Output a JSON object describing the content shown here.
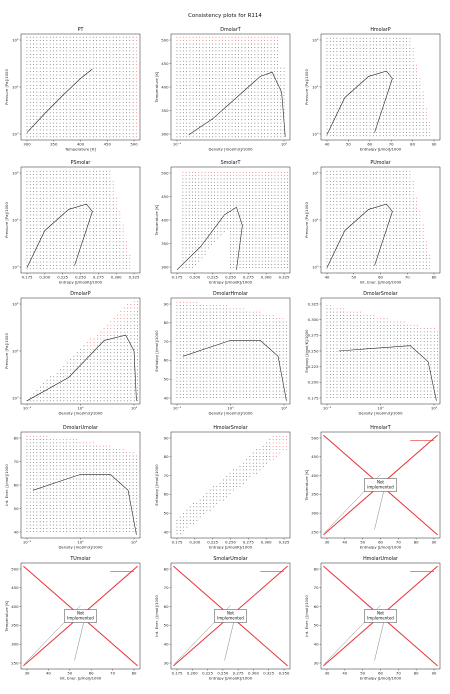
{
  "page": {
    "title": "Consistency plots for R114"
  },
  "colors": {
    "curve": "#222222",
    "dots": "#333333",
    "red": "#e8333a",
    "grid_stroke": "#222222",
    "box_fill": "#ffffff"
  },
  "chart_data": [
    {
      "title": "PT",
      "type": "scatter",
      "xlabel": "Temperature [K]",
      "ylabel": "Pressure [Pa]/1000",
      "xticks": [
        "300",
        "350",
        "400",
        "450",
        "500"
      ],
      "yticks": [
        "10⁰",
        "10¹",
        "10²"
      ],
      "placeholder": false
    },
    {
      "title": "DmolarT",
      "type": "scatter",
      "xlabel": "Density [mol/m3]/1000",
      "ylabel": "Temperature [K]",
      "xticks": [
        "10⁻¹",
        "10⁰"
      ],
      "yticks": [
        "300",
        "350",
        "400",
        "450",
        "500"
      ],
      "placeholder": false
    },
    {
      "title": "HmolarP",
      "type": "scatter",
      "xlabel": "Enthalpy [J/mol]/1000",
      "ylabel": "Pressure [Pa]/1000",
      "xticks": [
        "40",
        "50",
        "60",
        "70",
        "80",
        "90"
      ],
      "yticks": [
        "10⁰",
        "10¹",
        "10²"
      ],
      "placeholder": false
    },
    {
      "title": "PSmolar",
      "type": "scatter",
      "xlabel": "Entropy [J/mol/K]/1000",
      "ylabel": "Pressure [Pa]/1000",
      "xticks": [
        "0.175",
        "0.200",
        "0.225",
        "0.250",
        "0.275",
        "0.300",
        "0.325"
      ],
      "yticks": [
        "10⁰",
        "10¹",
        "10²"
      ],
      "placeholder": false
    },
    {
      "title": "SmolarT",
      "type": "scatter",
      "xlabel": "Entropy [J/mol/K]/1000",
      "ylabel": "Temperature [K]",
      "xticks": [
        "0.175",
        "0.200",
        "0.225",
        "0.250",
        "0.275",
        "0.300",
        "0.325"
      ],
      "yticks": [
        "300",
        "350",
        "400",
        "450",
        "500"
      ],
      "placeholder": false
    },
    {
      "title": "PUmolar",
      "type": "scatter",
      "xlabel": "Int. Ener. [J/mol]/1000",
      "ylabel": "Pressure [Pa]/1000",
      "xticks": [
        "40",
        "50",
        "60",
        "70",
        "80"
      ],
      "yticks": [
        "10⁰",
        "10¹",
        "10²"
      ],
      "placeholder": false
    },
    {
      "title": "DmolarP",
      "type": "scatter",
      "xlabel": "Density [mol/m3]/1000",
      "ylabel": "Pressure [Pa]/1000",
      "xticks": [
        "10⁻¹",
        "10⁰",
        "10¹"
      ],
      "yticks": [
        "10⁰",
        "10¹",
        "10²"
      ],
      "placeholder": false
    },
    {
      "title": "DmolarHmolar",
      "type": "scatter",
      "xlabel": "Density [mol/m3]/1000",
      "ylabel": "Enthalpy [J/mol]/1000",
      "xticks": [
        "10⁻¹",
        "10⁰",
        "10¹"
      ],
      "yticks": [
        "40",
        "50",
        "60",
        "70",
        "80",
        "90"
      ],
      "placeholder": false
    },
    {
      "title": "DmolarSmolar",
      "type": "scatter",
      "xlabel": "Density [mol/m3]/1000",
      "ylabel": "Entropy [J/mol/K]/1000",
      "xticks": [
        "10⁻¹",
        "10⁰",
        "10¹"
      ],
      "yticks": [
        "0.175",
        "0.200",
        "0.225",
        "0.250",
        "0.275",
        "0.300",
        "0.325"
      ],
      "placeholder": false
    },
    {
      "title": "DmolarUmolar",
      "type": "scatter",
      "xlabel": "Density [mol/m3]/1000",
      "ylabel": "Int. Ener. [J/mol]/1000",
      "xticks": [
        "10⁻¹",
        "10⁰",
        "10¹"
      ],
      "yticks": [
        "40",
        "50",
        "60",
        "70",
        "80"
      ],
      "placeholder": false
    },
    {
      "title": "HmolarSmolar",
      "type": "scatter",
      "xlabel": "Entropy [J/mol/K]/1000",
      "ylabel": "Enthalpy [J/mol]/1000",
      "xticks": [
        "0.175",
        "0.200",
        "0.225",
        "0.250",
        "0.275",
        "0.300",
        "0.325"
      ],
      "yticks": [
        "40",
        "50",
        "60",
        "70",
        "80",
        "90"
      ],
      "placeholder": false
    },
    {
      "title": "HmolarT",
      "type": "placeholder",
      "xlabel": "Enthalpy [J/mol]/1000",
      "ylabel": "Temperature [K]",
      "xticks": [
        "30",
        "40",
        "50",
        "60",
        "70",
        "80",
        "90"
      ],
      "yticks": [
        "250",
        "300",
        "350",
        "400",
        "450",
        "500"
      ],
      "placeholder": true,
      "note": "Not\nimplemented"
    },
    {
      "title": "TUmolar",
      "type": "placeholder",
      "xlabel": "Int. Ener. [J/mol]/1000",
      "ylabel": "Temperature [K]",
      "xticks": [
        "30",
        "40",
        "50",
        "60",
        "70",
        "80"
      ],
      "yticks": [
        "250",
        "300",
        "350",
        "400",
        "450",
        "500"
      ],
      "placeholder": true,
      "note": "Not\nImplemented"
    },
    {
      "title": "SmolarUmolar",
      "type": "placeholder",
      "xlabel": "Entropy [J/mol/K]/1000",
      "ylabel": "Int. Ener. [J/mol]/1000",
      "xticks": [
        "0.175",
        "0.200",
        "0.225",
        "0.250",
        "0.275",
        "0.300",
        "0.325",
        "0.350"
      ],
      "yticks": [
        "30",
        "40",
        "50",
        "60",
        "70",
        "80"
      ],
      "placeholder": true,
      "note": "Not\nImplemented"
    },
    {
      "title": "HmolarUmolar",
      "type": "placeholder",
      "xlabel": "Enthalpy [J/mol]/1000",
      "ylabel": "Int. Ener. [J/mol]/1000",
      "xticks": [
        "30",
        "40",
        "50",
        "60",
        "70",
        "80",
        "90"
      ],
      "yticks": [
        "30",
        "40",
        "50",
        "60",
        "70",
        "80"
      ],
      "placeholder": true,
      "note": "Not\nImplemented"
    }
  ]
}
